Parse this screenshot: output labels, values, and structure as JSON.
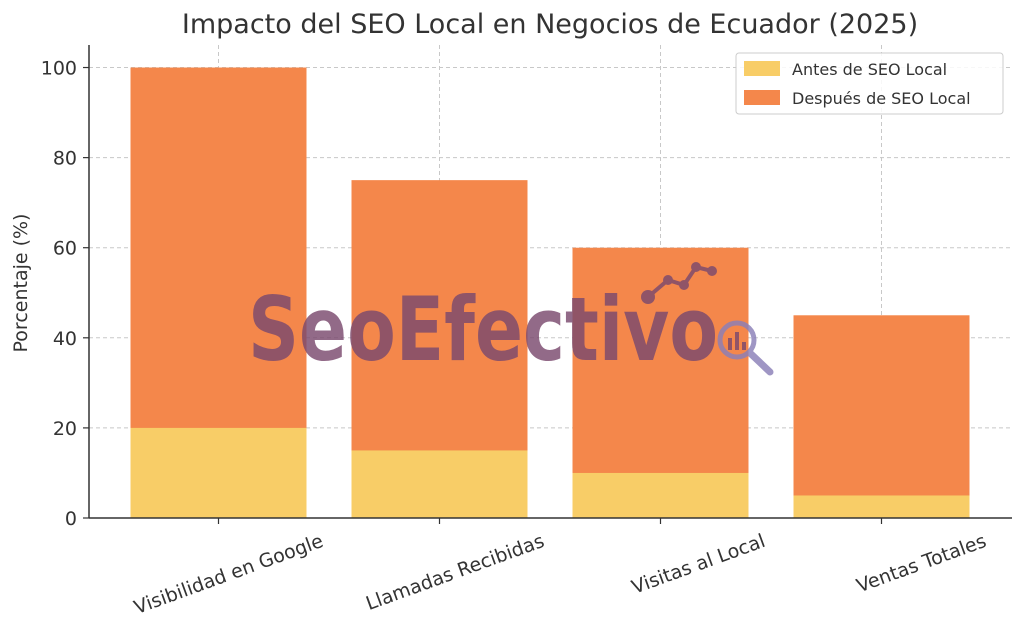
{
  "chart_data": {
    "type": "bar",
    "stacked": false,
    "title": "Impacto del SEO Local en Negocios de Ecuador (2025)",
    "xlabel": "",
    "ylabel": "Porcentaje (%)",
    "ylim": [
      0,
      105
    ],
    "yticks": [
      0,
      20,
      40,
      60,
      80,
      100
    ],
    "grid": true,
    "legend_position": "top-right",
    "categories": [
      "Visibilidad en Google",
      "Llamadas Recibidas",
      "Visitas al Local",
      "Ventas Totales"
    ],
    "series": [
      {
        "name": "Después de SEO Local",
        "color": "#F4874B",
        "values": [
          100,
          75,
          60,
          45
        ]
      },
      {
        "name": "Antes de SEO Local",
        "color": "#F8CD67",
        "values": [
          20,
          15,
          10,
          5
        ]
      }
    ],
    "legend_order": [
      "Antes de SEO Local",
      "Después de SEO Local"
    ]
  },
  "watermark": {
    "text": "SeoEfectivo",
    "color": "#7b4a6e"
  }
}
